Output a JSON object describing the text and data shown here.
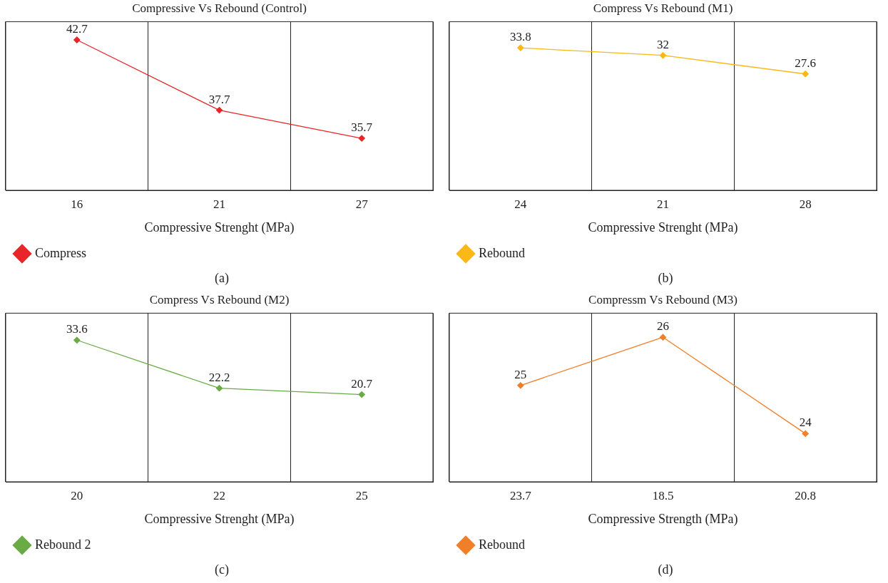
{
  "chart_data": [
    {
      "type": "line",
      "title": "Compressive Vs Rebound (Control)",
      "xlabel": "Compressive Strenght (MPa)",
      "categories": [
        "16",
        "21",
        "27"
      ],
      "series": [
        {
          "name": "Compress",
          "color": "#e8262a",
          "values": [
            42.7,
            37.7,
            35.7
          ]
        }
      ],
      "ylim": [
        32,
        44
      ],
      "tick_labels": "x",
      "grid": "x",
      "legend": "bottom left",
      "marker": "diamond",
      "data_labels": true,
      "annotations": [
        "(a)"
      ]
    },
    {
      "type": "line",
      "title": "Compress Vs Rebound (M1)",
      "xlabel": "Compressive Strenght (MPa)",
      "categories": [
        "24",
        "21",
        "28"
      ],
      "series": [
        {
          "name": "Rebound",
          "color": "#fbb817",
          "values": [
            33.8,
            32,
            27.6
          ]
        }
      ],
      "ylim": [
        0,
        40
      ],
      "tick_labels": "x",
      "grid": "x",
      "legend": "bottom left",
      "marker": "diamond",
      "data_labels": true,
      "annotations": [
        "(b)"
      ]
    },
    {
      "type": "line",
      "title": "Compress Vs Rebound (M2)",
      "xlabel": "Compressive Strenght (MPa)",
      "categories": [
        "20",
        "22",
        "25"
      ],
      "series": [
        {
          "name": "Rebound 2",
          "color": "#6aab46",
          "values": [
            33.6,
            22.2,
            20.7
          ]
        }
      ],
      "ylim": [
        0,
        40
      ],
      "tick_labels": "x",
      "grid": "x",
      "legend": "bottom left",
      "marker": "diamond",
      "data_labels": true,
      "annotations": [
        "(c)"
      ]
    },
    {
      "type": "line",
      "title": "Compressm Vs Rebound (M3)",
      "xlabel": "Compressive Strength (MPa)",
      "categories": [
        "23.7",
        "18.5",
        "20.8"
      ],
      "series": [
        {
          "name": "Rebound",
          "color": "#f07f2a",
          "values": [
            25,
            26,
            24
          ]
        }
      ],
      "ylim": [
        23,
        26.5
      ],
      "tick_labels": "x",
      "grid": "x",
      "legend": "bottom left",
      "marker": "diamond",
      "data_labels": true,
      "annotations": [
        "(d)"
      ]
    }
  ]
}
